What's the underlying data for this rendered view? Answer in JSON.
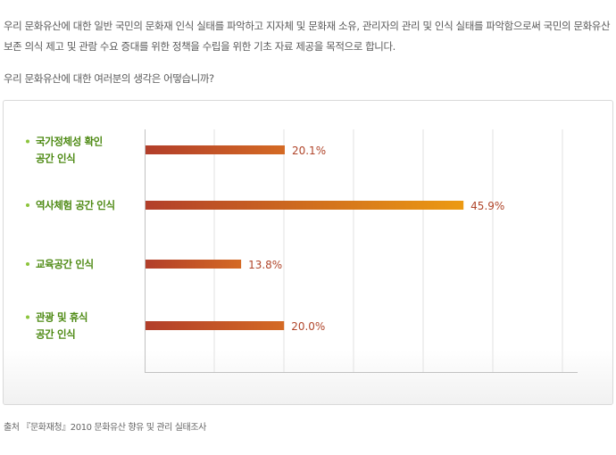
{
  "intro_text": "우리 문화유산에 대한 일반 국민의 문화재  인식 실태를 파악하고 지자체 및 문화재 소유, 관리자의 관리 및 인식 실태를 파악함으로써 국민의 문화유산 보존 의식 제고 및 관람 수요 증대를 위한 정책을 수립을 위한 기초 자료 제공을 목적으로 합니다.",
  "question_text": "우리 문화유산에 대한 여러분의 생각은 어떻습니까?",
  "source_text": "출처 『문화재청』2010 문화유산 향유 및 관리 실태조사",
  "chart_data": {
    "type": "bar",
    "orientation": "horizontal",
    "categories": [
      [
        "국가정체성 확인",
        "공간 인식"
      ],
      [
        "역사체험 공간 인식"
      ],
      [
        "교육공간 인식"
      ],
      [
        "관광 및 휴식",
        "공간 인식"
      ]
    ],
    "values": [
      20.1,
      45.9,
      13.8,
      20.0
    ],
    "value_labels": [
      "20.1%",
      "45.9%",
      "13.8%",
      "20.0%"
    ],
    "xlim": [
      0,
      62.5
    ],
    "grid": true,
    "colors": {
      "label": "#4e8a14",
      "bullet": "#8cc43c",
      "value_label": "#b0452a",
      "bar_start": "#b23e2a",
      "bar_end_short": "#d46a24",
      "bar_end_long": "#ec9a12",
      "grid": "#e2e2e2",
      "axis": "#c2c2c2"
    }
  }
}
